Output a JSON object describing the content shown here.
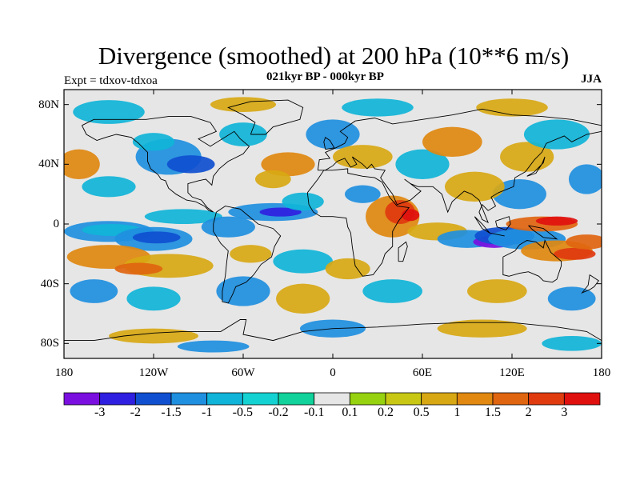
{
  "header": {
    "title": "Divergence (smoothed) at 200 hPa (10**6 m/s)",
    "left_label": "Expt = tdxov-tdxoa",
    "center_label": "021kyr BP - 000kyr BP",
    "right_label": "JJA"
  },
  "map": {
    "projection": "cylindrical-equidistant",
    "lon_range": [
      -180,
      180
    ],
    "lat_range": [
      -90,
      90
    ],
    "lat_ticks": [
      {
        "value": 80,
        "label": "80N"
      },
      {
        "value": 40,
        "label": "40N"
      },
      {
        "value": 0,
        "label": "0"
      },
      {
        "value": -40,
        "label": "40S"
      },
      {
        "value": -80,
        "label": "80S"
      }
    ],
    "lon_ticks": [
      {
        "value": -180,
        "label": "180"
      },
      {
        "value": -120,
        "label": "120W"
      },
      {
        "value": -60,
        "label": "60W"
      },
      {
        "value": 0,
        "label": "0"
      },
      {
        "value": 60,
        "label": "60E"
      },
      {
        "value": 120,
        "label": "120E"
      },
      {
        "value": 180,
        "label": "180"
      }
    ],
    "background_color": "#e6e6e6",
    "coastline_color": "#000000"
  },
  "colorbar": {
    "colors": [
      "#7a0fe0",
      "#2f1fe0",
      "#0f4fd0",
      "#1f8fe0",
      "#10b4d8",
      "#15d2d2",
      "#10d29a",
      "#e6e6e6",
      "#96d20f",
      "#c8c814",
      "#d8a814",
      "#e08810",
      "#e06510",
      "#e03a0f",
      "#e0100f"
    ],
    "labels": [
      "-3",
      "-2",
      "-1.5",
      "-1",
      "-0.5",
      "-0.2",
      "-0.1",
      "0.1",
      "0.2",
      "0.5",
      "1",
      "1.5",
      "2",
      "3"
    ]
  }
}
